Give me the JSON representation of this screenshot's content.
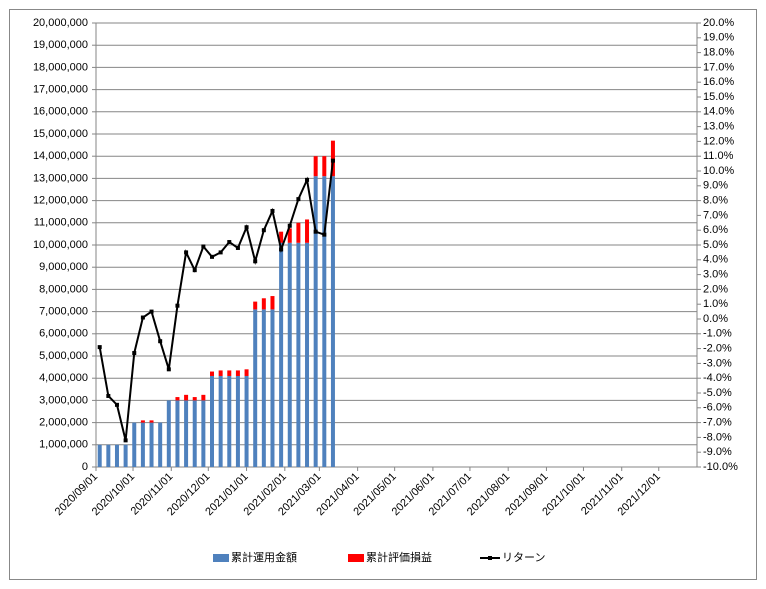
{
  "chart_data": {
    "type": "bar",
    "x": [
      "2020/09/04",
      "2020/09/11",
      "2020/09/18",
      "2020/09/25",
      "2020/10/02",
      "2020/10/09",
      "2020/10/16",
      "2020/10/23",
      "2020/10/30",
      "2020/11/06",
      "2020/11/13",
      "2020/11/20",
      "2020/11/27",
      "2020/12/04",
      "2020/12/11",
      "2020/12/18",
      "2020/12/25",
      "2021/01/01",
      "2021/01/08",
      "2021/01/15",
      "2021/01/22",
      "2021/01/29",
      "2021/02/05",
      "2021/02/12",
      "2021/02/19",
      "2021/02/26",
      "2021/03/05",
      "2021/03/12"
    ],
    "series": [
      {
        "name": "累計運用金額",
        "color": "#4f81bd",
        "type": "bar",
        "values": [
          1000000,
          1000000,
          1000000,
          1000000,
          2000000,
          2000000,
          2000000,
          2000000,
          3000000,
          3000000,
          3000000,
          3000000,
          3000000,
          4100000,
          4100000,
          4100000,
          4100000,
          4100000,
          7100000,
          7100000,
          7100000,
          10100000,
          10100000,
          10100000,
          10100000,
          13100000,
          13100000,
          13100000
        ]
      },
      {
        "name": "累計評価損益",
        "color": "#ff0000",
        "type": "bar",
        "values": [
          0,
          0,
          0,
          0,
          0,
          100000,
          100000,
          0,
          0,
          150000,
          250000,
          150000,
          250000,
          200000,
          250000,
          250000,
          250000,
          300000,
          350000,
          500000,
          600000,
          500000,
          650000,
          900000,
          1050000,
          900000,
          900000,
          1600000
        ]
      },
      {
        "name": "リターン",
        "color": "#000000",
        "type": "line",
        "axis": "y2",
        "values": [
          -1.9,
          -5.2,
          -5.8,
          -8.2,
          -2.3,
          0.1,
          0.5,
          -1.5,
          -3.4,
          0.9,
          4.5,
          3.3,
          4.9,
          4.2,
          4.5,
          5.2,
          4.8,
          6.2,
          3.9,
          6.0,
          7.3,
          4.7,
          6.3,
          8.1,
          9.4,
          5.9,
          5.7,
          10.7
        ]
      }
    ],
    "xlim": [
      "2020/09/01",
      "2022/01/01"
    ],
    "xticks": [
      "2020/09/01",
      "2020/10/01",
      "2020/11/01",
      "2020/12/01",
      "2021/01/01",
      "2021/02/01",
      "2021/03/01",
      "2021/04/01",
      "2021/05/01",
      "2021/06/01",
      "2021/07/01",
      "2021/08/01",
      "2021/09/01",
      "2021/10/01",
      "2021/11/01",
      "2021/12/01"
    ],
    "ylim": [
      0,
      20000000
    ],
    "yticks": [
      0,
      {
        "value": 1000000,
        "label": "1,000,000"
      },
      {
        "value": 2000000,
        "label": "2,000,000"
      },
      {
        "value": 3000000,
        "label": "3,000,000"
      },
      {
        "value": 4000000,
        "label": "4,000,000"
      },
      {
        "value": 5000000,
        "label": "5,000,000"
      },
      {
        "value": 6000000,
        "label": "6,000,000"
      },
      {
        "value": 7000000,
        "label": "7,000,000"
      },
      {
        "value": 8000000,
        "label": "8,000,000"
      },
      {
        "value": 9000000,
        "label": "9,000,000"
      },
      {
        "value": 10000000,
        "label": "10,000,000"
      },
      {
        "value": 11000000,
        "label": "11,000,000"
      },
      {
        "value": 12000000,
        "label": "12,000,000"
      },
      {
        "value": 13000000,
        "label": "13,000,000"
      },
      {
        "value": 14000000,
        "label": "14,000,000"
      },
      {
        "value": 15000000,
        "label": "15,000,000"
      },
      {
        "value": 16000000,
        "label": "16,000,000"
      },
      {
        "value": 17000000,
        "label": "17,000,000"
      },
      {
        "value": 18000000,
        "label": "18,000,000"
      },
      {
        "value": 19000000,
        "label": "19,000,000"
      },
      {
        "value": 20000000,
        "label": "20,000,000"
      }
    ],
    "y2lim": [
      -10,
      20
    ],
    "y2ticks": [
      {
        "value": -10,
        "label": "-10.0%"
      },
      {
        "value": -9,
        "label": "-9.0%"
      },
      {
        "value": -8,
        "label": "-8.0%"
      },
      {
        "value": -7,
        "label": "-7.0%"
      },
      {
        "value": -6,
        "label": "-6.0%"
      },
      {
        "value": -5,
        "label": "-5.0%"
      },
      {
        "value": -4,
        "label": "-4.0%"
      },
      {
        "value": -3,
        "label": "-3.0%"
      },
      {
        "value": -2,
        "label": "-2.0%"
      },
      {
        "value": -1,
        "label": "-1.0%"
      },
      {
        "value": 0,
        "label": "0.0%"
      },
      {
        "value": 1,
        "label": "1.0%"
      },
      {
        "value": 2,
        "label": "2.0%"
      },
      {
        "value": 3,
        "label": "3.0%"
      },
      {
        "value": 4,
        "label": "4.0%"
      },
      {
        "value": 5,
        "label": "5.0%"
      },
      {
        "value": 6,
        "label": "6.0%"
      },
      {
        "value": 7,
        "label": "7.0%"
      },
      {
        "value": 8,
        "label": "8.0%"
      },
      {
        "value": 9,
        "label": "9.0%"
      },
      {
        "value": 10,
        "label": "10.0%"
      },
      {
        "value": 11,
        "label": "11.0%"
      },
      {
        "value": 12,
        "label": "12.0%"
      },
      {
        "value": 13,
        "label": "13.0%"
      },
      {
        "value": 14,
        "label": "14.0%"
      },
      {
        "value": 15,
        "label": "15.0%"
      },
      {
        "value": 16,
        "label": "16.0%"
      },
      {
        "value": 17,
        "label": "17.0%"
      },
      {
        "value": 18,
        "label": "18.0%"
      },
      {
        "value": 19,
        "label": "19.0%"
      },
      {
        "value": 20,
        "label": "20.0%"
      }
    ],
    "grid": true,
    "legend": "bottom"
  }
}
